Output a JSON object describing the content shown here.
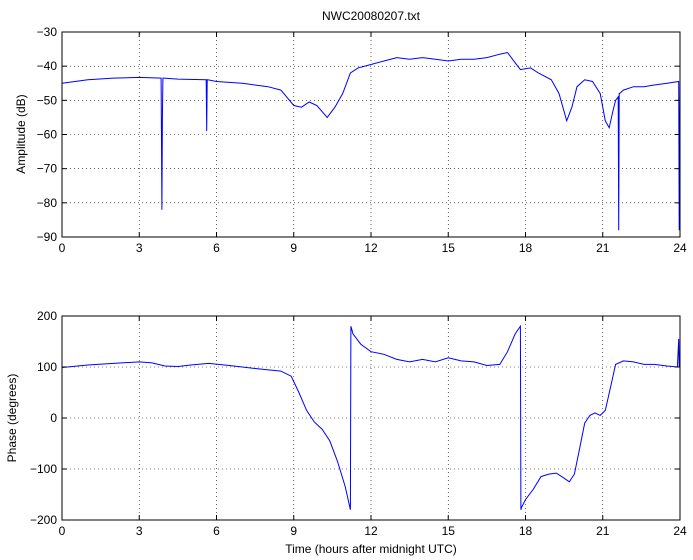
{
  "chart_data": [
    {
      "type": "line",
      "title": "NWC20080207.txt",
      "xlabel": "",
      "ylabel": "Amplitude (dB)",
      "xlim": [
        0,
        24
      ],
      "ylim": [
        -90,
        -30
      ],
      "xticks": [
        0,
        3,
        6,
        9,
        12,
        15,
        18,
        21,
        24
      ],
      "yticks": [
        -30,
        -40,
        -50,
        -60,
        -70,
        -80,
        -90
      ],
      "grid": "dotted",
      "color": "#0000ff",
      "series": [
        {
          "x": [
            0,
            1,
            2,
            3,
            3.85,
            3.88,
            3.9,
            3.92,
            3.95,
            4.5,
            5.6,
            5.62,
            5.64,
            5.66,
            6,
            7,
            8,
            8.5,
            9,
            9.3,
            9.6,
            9.9,
            10.3,
            10.6,
            10.9,
            11.2,
            11.5,
            12,
            12.5,
            13,
            13.5,
            14,
            14.5,
            15,
            15.5,
            16,
            16.5,
            17,
            17.3,
            17.6,
            17.8,
            18.2,
            18.5,
            19,
            19.3,
            19.6,
            19.8,
            20,
            20.3,
            20.6,
            20.9,
            21.1,
            21.25,
            21.4,
            21.5,
            21.6,
            21.62,
            21.64,
            21.66,
            21.8,
            22.2,
            22.6,
            23,
            23.5,
            23.95,
            23.97,
            23.99,
            24
          ],
          "y": [
            -45,
            -44,
            -43.5,
            -43.3,
            -43.5,
            -82,
            -55,
            -43.5,
            -43.5,
            -43.8,
            -44,
            -59,
            -44,
            -44,
            -44.5,
            -45,
            -46,
            -47,
            -51.5,
            -52,
            -50.5,
            -51.5,
            -55,
            -52,
            -48,
            -42,
            -40.5,
            -39.5,
            -38.5,
            -37.5,
            -38,
            -37.5,
            -38,
            -38.5,
            -38,
            -38,
            -37.5,
            -36.5,
            -36,
            -39,
            -41,
            -40.5,
            -42,
            -44,
            -48,
            -56,
            -52,
            -46,
            -44,
            -44.5,
            -48,
            -56,
            -58,
            -53,
            -50,
            -49,
            -88,
            -48,
            -48,
            -47,
            -46,
            -46,
            -45.5,
            -45,
            -44.5,
            -88,
            -60,
            -45
          ]
        }
      ]
    },
    {
      "type": "line",
      "title": "",
      "xlabel": "Time (hours after midnight UTC)",
      "ylabel": "Phase (degrees)",
      "xlim": [
        0,
        24
      ],
      "ylim": [
        -200,
        200
      ],
      "xticks": [
        0,
        3,
        6,
        9,
        12,
        15,
        18,
        21,
        24
      ],
      "yticks": [
        200,
        100,
        0,
        -100,
        -200
      ],
      "grid": "dotted",
      "color": "#0000ff",
      "series": [
        {
          "x": [
            0,
            1,
            2,
            3,
            3.5,
            4,
            4.5,
            5,
            5.7,
            6.5,
            7.5,
            8.5,
            8.9,
            9.2,
            9.5,
            9.8,
            10.1,
            10.4,
            10.7,
            11,
            11.2,
            11.22,
            11.3,
            11.6,
            12,
            12.5,
            13,
            13.5,
            14,
            14.5,
            15,
            15.5,
            16,
            16.5,
            17,
            17.3,
            17.6,
            17.8,
            17.82,
            17.85,
            18,
            18.3,
            18.6,
            18.9,
            19.2,
            19.5,
            19.7,
            19.9,
            20.1,
            20.3,
            20.5,
            20.7,
            20.9,
            21.1,
            21.3,
            21.5,
            21.8,
            22.2,
            22.6,
            23,
            23.5,
            23.9,
            23.95,
            23.97,
            24
          ],
          "y": [
            99,
            104,
            107,
            110,
            108,
            102,
            101,
            104,
            107,
            103,
            97,
            92,
            82,
            50,
            15,
            -8,
            -22,
            -45,
            -85,
            -135,
            -180,
            180,
            165,
            145,
            130,
            125,
            115,
            110,
            115,
            110,
            118,
            112,
            110,
            103,
            105,
            130,
            165,
            180,
            -180,
            -175,
            -160,
            -140,
            -115,
            -110,
            -108,
            -118,
            -125,
            -110,
            -60,
            -10,
            5,
            10,
            5,
            15,
            60,
            105,
            112,
            110,
            105,
            105,
            102,
            100,
            155,
            100,
            100
          ]
        }
      ]
    }
  ]
}
